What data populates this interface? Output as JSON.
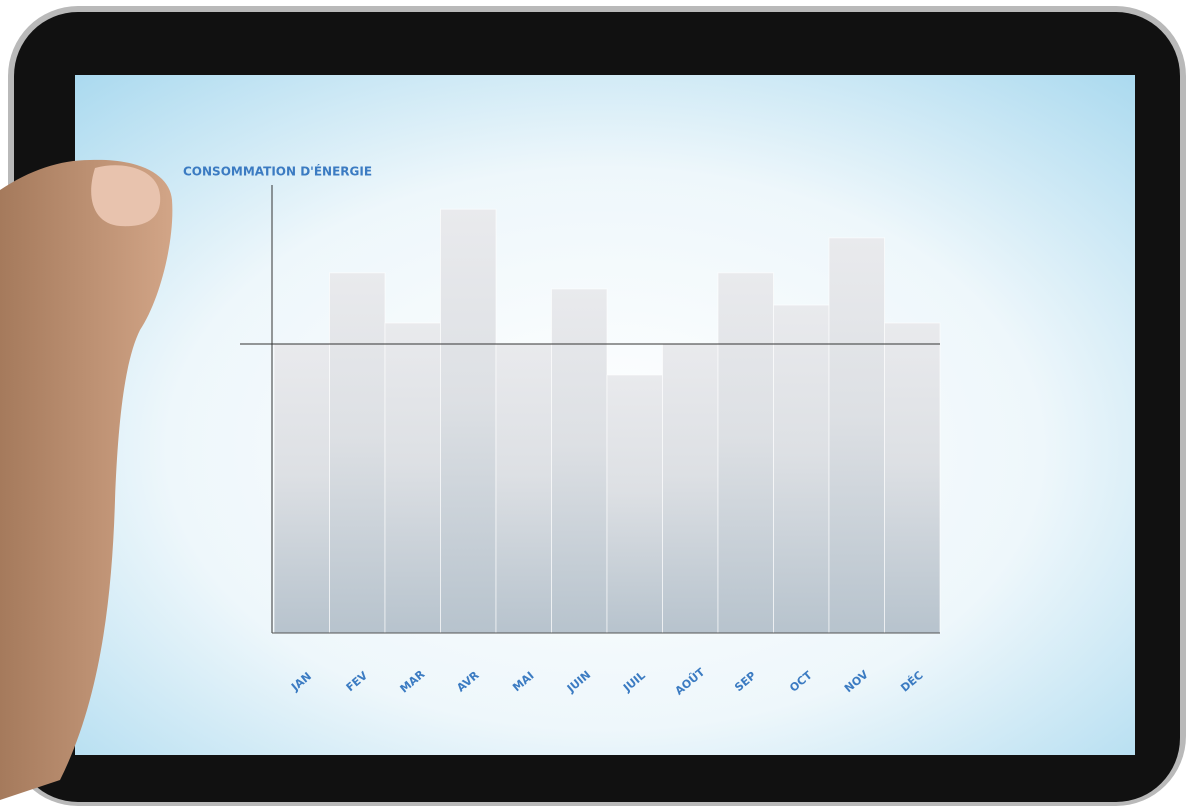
{
  "chart_data": {
    "type": "bar",
    "title": "CONSOMMATION D'ÉNERGIE",
    "categories": [
      "JAN",
      "FEV",
      "MAR",
      "AVR",
      "MAI",
      "JUIN",
      "JUIL",
      "AOÛT",
      "SEP",
      "OCT",
      "NOV",
      "DÉC"
    ],
    "values": [
      64.5,
      80.4,
      69.2,
      94.6,
      64.5,
      76.8,
      57.6,
      64.5,
      80.4,
      73.2,
      88.2,
      69.2
    ],
    "color": "#dfe2e6",
    "ylim": [
      0,
      100
    ],
    "reference_line": 64.5
  }
}
